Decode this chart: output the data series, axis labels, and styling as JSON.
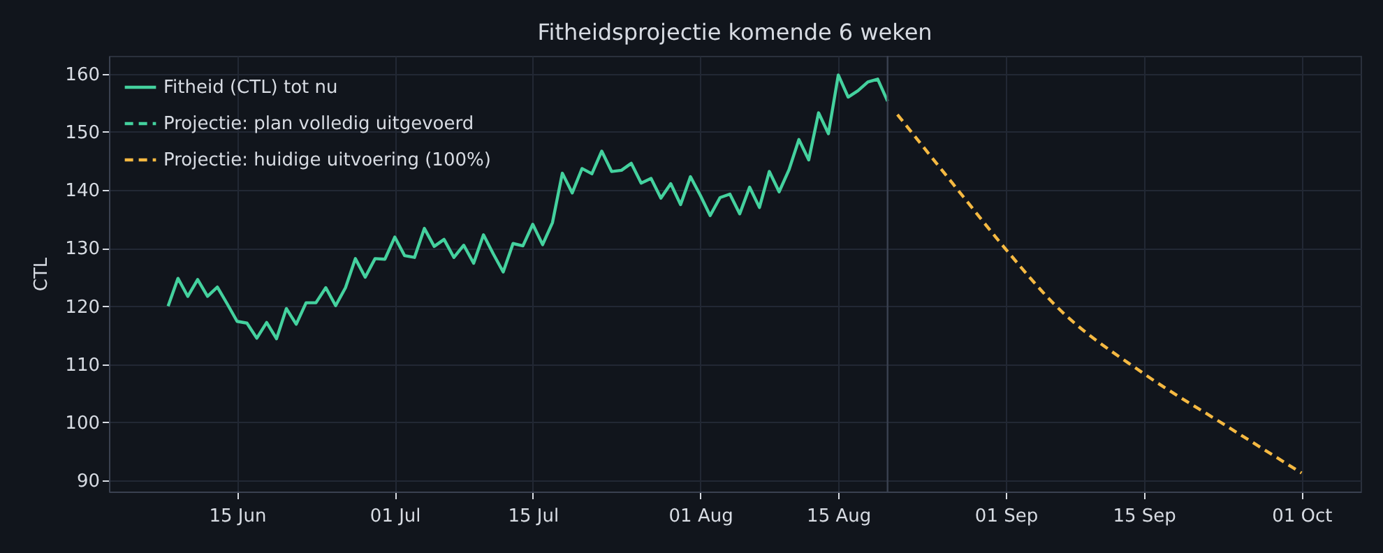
{
  "chart_data": {
    "type": "line",
    "title": "Fitheidsprojectie komende 6 weken",
    "ylabel": "CTL",
    "xlim": [
      "--06-02",
      "--10-07"
    ],
    "xticks": [
      {
        "value": "--06-15",
        "label": "15 Jun"
      },
      {
        "value": "--07-01",
        "label": "01 Jul"
      },
      {
        "value": "--07-15",
        "label": "15 Jul"
      },
      {
        "value": "--08-01",
        "label": "01 Aug"
      },
      {
        "value": "--08-15",
        "label": "15 Aug"
      },
      {
        "value": "--09-01",
        "label": "01 Sep"
      },
      {
        "value": "--09-15",
        "label": "15 Sep"
      },
      {
        "value": "--10-01",
        "label": "01 Oct"
      }
    ],
    "ylim": [
      88.1,
      163.1
    ],
    "yticks": [
      90,
      100,
      110,
      120,
      130,
      140,
      150,
      160
    ],
    "grid": true,
    "legend": "top left",
    "ref_lines": [
      {
        "axis": "x",
        "value": "--08-20",
        "color": "#3a4150"
      }
    ],
    "series": [
      {
        "name": "Fitheid (CTL) tot nu",
        "color": "#44d19e",
        "line_style": "solid",
        "x": [
          "--06-08",
          "--06-09",
          "--06-10",
          "--06-11",
          "--06-12",
          "--06-13",
          "--06-14",
          "--06-15",
          "--06-16",
          "--06-17",
          "--06-18",
          "--06-19",
          "--06-20",
          "--06-21",
          "--06-22",
          "--06-23",
          "--06-24",
          "--06-25",
          "--06-26",
          "--06-27",
          "--06-28",
          "--06-29",
          "--06-30",
          "--07-01",
          "--07-02",
          "--07-03",
          "--07-04",
          "--07-05",
          "--07-06",
          "--07-07",
          "--07-08",
          "--07-09",
          "--07-10",
          "--07-11",
          "--07-12",
          "--07-13",
          "--07-14",
          "--07-15",
          "--07-16",
          "--07-17",
          "--07-18",
          "--07-19",
          "--07-20",
          "--07-21",
          "--07-22",
          "--07-23",
          "--07-24",
          "--07-25",
          "--07-26",
          "--07-27",
          "--07-28",
          "--07-29",
          "--07-30",
          "--07-31",
          "--08-01",
          "--08-02",
          "--08-03",
          "--08-04",
          "--08-05",
          "--08-06",
          "--08-07",
          "--08-08",
          "--08-09",
          "--08-10",
          "--08-11",
          "--08-12",
          "--08-13",
          "--08-14",
          "--08-15",
          "--08-16",
          "--08-17",
          "--08-18",
          "--08-19",
          "--08-20"
        ],
        "values": [
          120.0,
          124.8,
          121.7,
          124.6,
          121.7,
          123.3,
          120.4,
          117.4,
          117.1,
          114.5,
          117.2,
          114.4,
          119.6,
          116.9,
          120.6,
          120.6,
          123.2,
          120.1,
          123.2,
          128.2,
          125.0,
          128.2,
          128.1,
          131.9,
          128.7,
          128.4,
          133.4,
          130.3,
          131.5,
          128.4,
          130.5,
          127.4,
          132.3,
          129.0,
          125.9,
          130.8,
          130.4,
          134.1,
          130.6,
          134.4,
          142.9,
          139.5,
          143.7,
          142.8,
          146.7,
          143.2,
          143.4,
          144.6,
          141.2,
          142.0,
          138.6,
          141.1,
          137.5,
          142.3,
          139.1,
          135.6,
          138.7,
          139.3,
          135.9,
          140.5,
          137.0,
          143.2,
          139.7,
          143.5,
          148.7,
          145.2,
          153.3,
          149.7,
          159.8,
          156.0,
          157.1,
          158.6,
          159.1,
          155.3
        ]
      },
      {
        "name": "Projectie: plan volledig uitgevoerd",
        "color": "#44d19e",
        "line_style": "dashed"
      },
      {
        "name": "Projectie: huidige uitvoering (100%)",
        "color": "#f5b942",
        "line_style": "dashed",
        "x": [
          "--08-21",
          "--08-27",
          "--09-01",
          "--09-06",
          "--09-15",
          "--09-23",
          "--10-01"
        ],
        "values": [
          153.0,
          140.3,
          129.8,
          120.2,
          108.4,
          99.8,
          91.3
        ]
      }
    ]
  }
}
